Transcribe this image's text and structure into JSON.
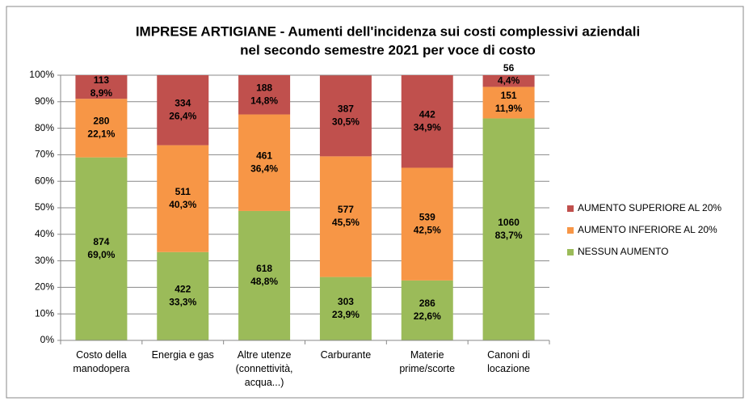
{
  "chart_data": {
    "type": "stacked_bar_100",
    "title": [
      "IMPRESE ARTIGIANE - Aumenti dell'incidenza sui costi complessivi aziendali",
      "nel secondo semestre 2021 per voce di costo"
    ],
    "categories": [
      "Costo della manodopera",
      "Energia e gas",
      "Altre utenze (connettività, acqua...)",
      "Carburante",
      "Materie prime/scorte",
      "Canoni di locazione"
    ],
    "series": [
      {
        "name": "NESSUN AUMENTO",
        "color": "#9bbb59",
        "values": [
          69.0,
          33.3,
          48.8,
          23.9,
          22.6,
          83.7
        ],
        "value_labels": [
          "69,0%",
          "33,3%",
          "48,8%",
          "23,9%",
          "22,6%",
          "83,7%"
        ],
        "counts": [
          874,
          422,
          618,
          303,
          286,
          1060
        ]
      },
      {
        "name": "AUMENTO INFERIORE AL 20%",
        "color": "#f79646",
        "values": [
          22.1,
          40.3,
          36.4,
          45.5,
          42.5,
          11.9
        ],
        "value_labels": [
          "22,1%",
          "40,3%",
          "36,4%",
          "45,5%",
          "42,5%",
          "11,9%"
        ],
        "counts": [
          280,
          511,
          461,
          577,
          539,
          151
        ]
      },
      {
        "name": "AUMENTO SUPERIORE AL 20%",
        "color": "#c0504d",
        "values": [
          8.9,
          26.4,
          14.8,
          30.5,
          34.9,
          4.4
        ],
        "value_labels": [
          "8,9%",
          "26,4%",
          "14,8%",
          "30,5%",
          "34,9%",
          "4,4%"
        ],
        "counts": [
          113,
          334,
          188,
          387,
          442,
          56
        ]
      }
    ],
    "ylim": [
      0,
      100
    ],
    "yticks": [
      {
        "value": 0,
        "label": "0%"
      },
      {
        "value": 10,
        "label": "10%"
      },
      {
        "value": 20,
        "label": "20%"
      },
      {
        "value": 30,
        "label": "30%"
      },
      {
        "value": 40,
        "label": "40%"
      },
      {
        "value": 50,
        "label": "50%"
      },
      {
        "value": 60,
        "label": "60%"
      },
      {
        "value": 70,
        "label": "70%"
      },
      {
        "value": 80,
        "label": "80%"
      },
      {
        "value": 90,
        "label": "90%"
      },
      {
        "value": 100,
        "label": "100%"
      }
    ],
    "grid": true,
    "legend": "right"
  }
}
